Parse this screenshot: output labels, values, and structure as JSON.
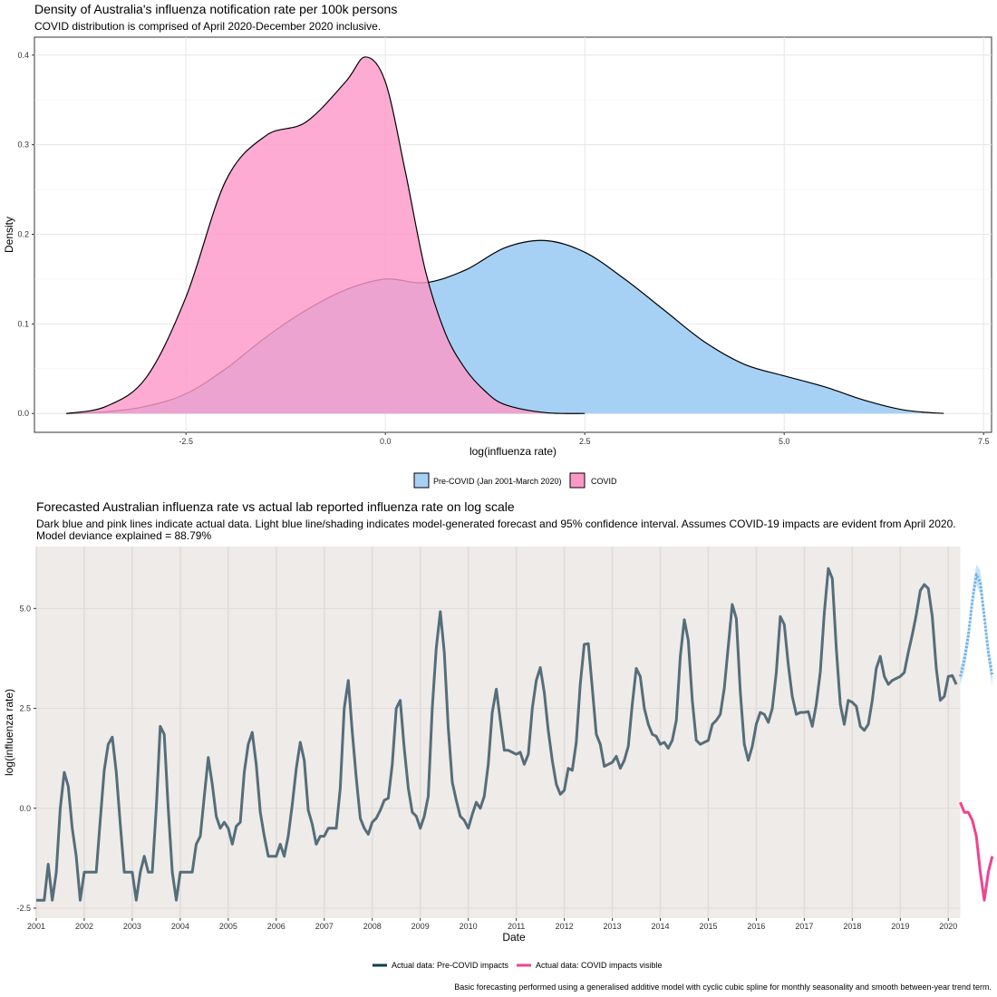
{
  "chart_data": [
    {
      "type": "area",
      "title": "Density of Australia's influenza notification rate per 100k persons",
      "subtitle": "COVID distribution is comprised of April 2020-December 2020 inclusive.",
      "xlabel": "log(influenza rate)",
      "ylabel": "Density",
      "xlim": [
        -4.4,
        7.6
      ],
      "ylim": [
        -0.021,
        0.42
      ],
      "xticks": [
        -2.5,
        0.0,
        2.5,
        5.0,
        7.5
      ],
      "xtick_labels": [
        "-2.5",
        "0.0",
        "2.5",
        "5.0",
        "7.5"
      ],
      "yticks": [
        0.0,
        0.1,
        0.2,
        0.3,
        0.4
      ],
      "ytick_labels": [
        "0.0",
        "0.1",
        "0.2",
        "0.3",
        "0.4"
      ],
      "grid": true,
      "legend_position": "bottom",
      "series": [
        {
          "name": "Pre-COVID (Jan 2001-March 2020)",
          "color": "#a6d1f5",
          "x": [
            -4.0,
            -3.5,
            -3.0,
            -2.5,
            -2.0,
            -1.5,
            -1.0,
            -0.5,
            0.0,
            0.5,
            1.0,
            1.5,
            2.0,
            2.5,
            3.0,
            3.5,
            4.0,
            4.5,
            5.0,
            5.5,
            6.0,
            6.5,
            7.0
          ],
          "y": [
            0.0,
            0.002,
            0.008,
            0.022,
            0.05,
            0.085,
            0.115,
            0.138,
            0.15,
            0.146,
            0.16,
            0.185,
            0.193,
            0.18,
            0.15,
            0.115,
            0.08,
            0.055,
            0.042,
            0.03,
            0.015,
            0.004,
            0.0
          ]
        },
        {
          "name": "COVID",
          "color": "#fc98c8",
          "x": [
            -4.0,
            -3.5,
            -3.0,
            -2.5,
            -2.0,
            -1.5,
            -1.0,
            -0.5,
            -0.25,
            0.0,
            0.25,
            0.5,
            0.75,
            1.0,
            1.25,
            1.5,
            2.0,
            2.5
          ],
          "y": [
            0.0,
            0.008,
            0.04,
            0.13,
            0.26,
            0.31,
            0.325,
            0.37,
            0.398,
            0.37,
            0.27,
            0.16,
            0.09,
            0.05,
            0.025,
            0.01,
            0.001,
            0.0
          ]
        }
      ]
    },
    {
      "type": "line",
      "title": "Forecasted Australian influenza rate vs actual lab reported influenza rate on log scale",
      "subtitle": "Dark blue and pink lines indicate actual data. Light blue line/shading indicates model-generated forecast and 95% confidence interval. Assumes COVID-19 impacts are evident from April 2020.",
      "subtitle2": "Model deviance explained = 88.79%",
      "xlabel": "Date",
      "ylabel": "log(influenza rate)",
      "xlim": [
        2001.0,
        2020.92
      ],
      "ylim": [
        -2.75,
        6.55
      ],
      "xticks": [
        "2001",
        "2002",
        "2003",
        "2004",
        "2005",
        "2006",
        "2007",
        "2008",
        "2009",
        "2010",
        "2011",
        "2012",
        "2013",
        "2014",
        "2015",
        "2016",
        "2017",
        "2018",
        "2019",
        "2020"
      ],
      "yticks": [
        -2.5,
        0.0,
        2.5,
        5.0
      ],
      "ytick_labels": [
        "-2.5",
        "0.0",
        "2.5",
        "5.0"
      ],
      "grid": true,
      "legend_position": "bottom",
      "series": [
        {
          "name": "Actual data: Pre-COVID impacts",
          "color": "#546e7a",
          "x_start": "2001-01",
          "values": [
            -2.3,
            -2.3,
            -2.3,
            -1.4,
            -2.3,
            -1.6,
            0.0,
            0.9,
            0.55,
            -0.5,
            -1.2,
            -2.3,
            -1.6,
            -1.6,
            -1.6,
            -1.6,
            -0.3,
            0.95,
            1.6,
            1.78,
            0.9,
            -0.4,
            -1.6,
            -1.6,
            -1.6,
            -2.3,
            -1.6,
            -1.2,
            -1.6,
            -1.6,
            0.0,
            2.05,
            1.85,
            0.0,
            -1.6,
            -2.3,
            -1.6,
            -1.6,
            -1.6,
            -1.6,
            -0.9,
            -0.7,
            0.3,
            1.27,
            0.6,
            -0.2,
            -0.5,
            -0.35,
            -0.5,
            -0.9,
            -0.45,
            -0.35,
            0.9,
            1.6,
            1.9,
            1.1,
            -0.1,
            -0.7,
            -1.2,
            -1.2,
            -1.2,
            -0.9,
            -1.2,
            -0.7,
            0.1,
            1.0,
            1.65,
            1.2,
            -0.05,
            -0.4,
            -0.9,
            -0.7,
            -0.7,
            -0.5,
            -0.5,
            -0.5,
            0.5,
            2.5,
            3.2,
            1.9,
            0.75,
            -0.25,
            -0.5,
            -0.65,
            -0.35,
            -0.25,
            -0.05,
            0.2,
            0.25,
            1.1,
            2.5,
            2.7,
            1.5,
            0.5,
            -0.1,
            -0.2,
            -0.5,
            -0.2,
            0.3,
            2.5,
            4.0,
            4.92,
            3.9,
            2.0,
            0.65,
            0.2,
            -0.2,
            -0.3,
            -0.5,
            -0.15,
            0.15,
            0.0,
            0.3,
            1.1,
            2.4,
            2.98,
            2.2,
            1.45,
            1.45,
            1.4,
            1.35,
            1.4,
            1.1,
            1.35,
            2.5,
            3.2,
            3.52,
            2.9,
            1.95,
            1.2,
            0.6,
            0.35,
            0.45,
            1.0,
            0.95,
            1.65,
            3.1,
            4.1,
            4.12,
            3.0,
            1.85,
            1.6,
            1.05,
            1.1,
            1.15,
            1.3,
            1.0,
            1.2,
            1.55,
            2.6,
            3.5,
            3.3,
            2.5,
            2.1,
            1.85,
            1.8,
            1.6,
            1.65,
            1.5,
            1.7,
            2.2,
            3.8,
            4.72,
            4.2,
            2.7,
            1.7,
            1.6,
            1.65,
            1.7,
            2.1,
            2.2,
            2.35,
            3.0,
            4.05,
            5.1,
            4.75,
            2.9,
            1.6,
            1.2,
            1.55,
            2.1,
            2.4,
            2.35,
            2.15,
            2.5,
            3.4,
            4.8,
            4.6,
            3.6,
            2.8,
            2.35,
            2.4,
            2.4,
            2.42,
            2.05,
            2.6,
            3.4,
            4.9,
            6.0,
            5.75,
            4.0,
            2.6,
            2.1,
            2.7,
            2.65,
            2.55,
            2.05,
            1.95,
            2.1,
            2.7,
            3.5,
            3.8,
            3.3,
            3.1,
            3.2,
            3.25,
            3.3,
            3.4,
            3.9,
            4.35,
            4.85,
            5.45,
            5.6,
            5.5,
            4.8,
            3.5,
            2.7,
            2.8,
            3.3,
            3.32,
            3.1
          ]
        },
        {
          "name": "Actual data: COVID impacts visible",
          "color": "#f0438f",
          "x_start": "2020-04",
          "values": [
            0.15,
            -0.1,
            -0.1,
            -0.3,
            -0.7,
            -1.6,
            -2.3,
            -1.6,
            -1.2
          ]
        },
        {
          "name": "Forecast",
          "color": "#6aaee8",
          "style": "dotted",
          "x_start": "2020-04",
          "values": [
            3.3,
            3.7,
            4.3,
            5.2,
            5.85,
            5.65,
            4.8,
            3.9,
            3.3
          ],
          "lower": [
            3.1,
            3.45,
            4.05,
            4.95,
            5.6,
            5.35,
            4.55,
            3.65,
            3.05
          ],
          "upper": [
            3.5,
            3.95,
            4.55,
            5.45,
            6.1,
            5.95,
            5.05,
            4.15,
            3.55
          ]
        }
      ]
    }
  ],
  "caption": "Basic forecasting performed using a generalised additive model with cyclic cubic spline for monthly seasonality and smooth between-year trend term."
}
